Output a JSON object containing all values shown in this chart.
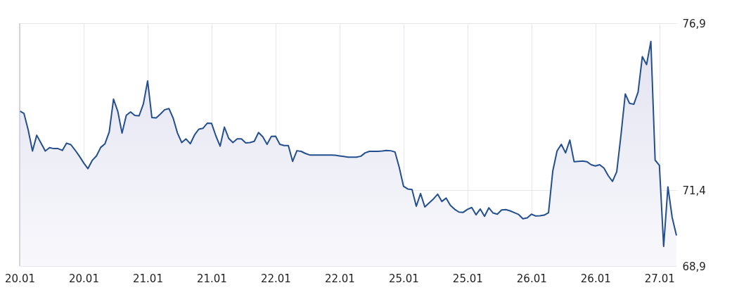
{
  "chart_data": {
    "type": "area",
    "categories": [
      "20.01",
      null,
      null,
      null,
      null,
      null,
      null,
      null,
      null,
      null,
      null,
      null,
      null,
      null,
      null,
      "20.01",
      null,
      null,
      null,
      null,
      null,
      null,
      null,
      null,
      null,
      null,
      null,
      null,
      null,
      null,
      "21.01",
      null,
      null,
      null,
      null,
      null,
      null,
      null,
      null,
      null,
      null,
      null,
      null,
      null,
      null,
      "21.01",
      null,
      null,
      null,
      null,
      null,
      null,
      null,
      null,
      null,
      null,
      null,
      null,
      null,
      null,
      "22.01",
      null,
      null,
      null,
      null,
      null,
      null,
      null,
      null,
      null,
      null,
      null,
      null,
      null,
      null,
      "22.01",
      null,
      null,
      null,
      null,
      null,
      null,
      null,
      null,
      null,
      null,
      null,
      null,
      null,
      null,
      "25.01",
      null,
      null,
      null,
      null,
      null,
      null,
      null,
      null,
      null,
      null,
      null,
      null,
      null,
      null,
      "25.01",
      null,
      null,
      null,
      null,
      null,
      null,
      null,
      null,
      null,
      null,
      null,
      null,
      null,
      null,
      "26.01",
      null,
      null,
      null,
      null,
      null,
      null,
      null,
      null,
      null,
      null,
      null,
      null,
      null,
      null,
      "26.01",
      null,
      null,
      null,
      null,
      null,
      null,
      null,
      null,
      null,
      null,
      null,
      null,
      null,
      null,
      "27.01",
      null,
      null,
      null,
      null
    ],
    "series": [
      {
        "color": "#234f8e",
        "values": [
          74.01,
          73.93,
          73.38,
          72.69,
          73.21,
          72.95,
          72.69,
          72.8,
          72.77,
          72.77,
          72.71,
          72.95,
          72.9,
          72.72,
          72.52,
          72.3,
          72.11,
          72.38,
          72.53,
          72.81,
          72.93,
          73.32,
          74.4,
          74.0,
          73.28,
          73.87,
          73.98,
          73.86,
          73.85,
          74.24,
          75.0,
          73.79,
          73.78,
          73.91,
          74.05,
          74.09,
          73.77,
          73.28,
          72.97,
          73.09,
          72.93,
          73.22,
          73.41,
          73.44,
          73.61,
          73.6,
          73.19,
          72.85,
          73.48,
          73.11,
          72.97,
          73.09,
          73.09,
          72.96,
          72.97,
          73.01,
          73.3,
          73.16,
          72.91,
          73.17,
          73.18,
          72.91,
          72.87,
          72.87,
          72.35,
          72.7,
          72.68,
          72.61,
          72.56,
          72.56,
          72.56,
          72.56,
          72.56,
          72.56,
          72.55,
          72.53,
          72.51,
          72.49,
          72.49,
          72.49,
          72.52,
          72.63,
          72.68,
          72.68,
          72.68,
          72.69,
          72.71,
          72.7,
          72.66,
          72.15,
          71.53,
          71.44,
          71.42,
          70.87,
          71.29,
          70.85,
          70.98,
          71.11,
          71.27,
          71.03,
          71.14,
          70.9,
          70.77,
          70.68,
          70.67,
          70.77,
          70.83,
          70.59,
          70.78,
          70.54,
          70.82,
          70.65,
          70.61,
          70.75,
          70.76,
          70.72,
          70.66,
          70.6,
          70.46,
          70.49,
          70.61,
          70.55,
          70.56,
          70.58,
          70.66,
          72.03,
          72.69,
          72.91,
          72.63,
          73.05,
          72.34,
          72.35,
          72.36,
          72.34,
          72.24,
          72.2,
          72.24,
          72.13,
          71.88,
          71.69,
          72.01,
          73.23,
          74.57,
          74.26,
          74.23,
          74.63,
          75.8,
          75.54,
          76.3,
          72.39,
          72.22,
          69.55,
          71.51,
          70.5,
          69.91
        ]
      }
    ],
    "ylim": [
      68.9,
      76.9
    ],
    "yticks": [
      {
        "value": 68.9,
        "label": "68,9"
      },
      {
        "value": 71.4,
        "label": "71,4"
      },
      {
        "value": 76.9,
        "label": "76,9"
      }
    ],
    "grid": true
  }
}
